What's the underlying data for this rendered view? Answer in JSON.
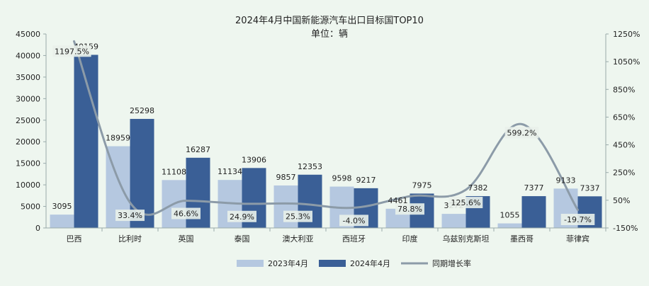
{
  "chart_data": {
    "type": "bar",
    "title": "2024年4月中国新能源汽车出口目标国TOP10",
    "subtitle": "单位：辆",
    "categories": [
      "巴西",
      "比利时",
      "英国",
      "泰国",
      "澳大利亚",
      "西班牙",
      "印度",
      "乌兹别克斯坦",
      "墨西哥",
      "菲律宾"
    ],
    "series": [
      {
        "name": "2023年4月",
        "type": "bar",
        "axis": "left",
        "color": "#b5c8e0",
        "values": [
          3095,
          18959,
          11108,
          11134,
          9857,
          9598,
          4461,
          3272,
          1055,
          9133
        ]
      },
      {
        "name": "2024年4月",
        "type": "bar",
        "axis": "left",
        "color": "#3a5f96",
        "values": [
          40159,
          25298,
          16287,
          13906,
          12353,
          9217,
          7975,
          7382,
          7377,
          7337
        ]
      },
      {
        "name": "同期增长率",
        "type": "line",
        "axis": "right",
        "color": "#8c9ba8",
        "values": [
          1197.5,
          33.4,
          46.6,
          24.9,
          25.3,
          -4.0,
          78.8,
          125.6,
          599.2,
          -19.7
        ],
        "labels": [
          "1197.5%",
          "33.4%",
          "46.6%",
          "24.9%",
          "25.3%",
          "-4.0%",
          "78.8%",
          "125.6%",
          "599.2%",
          "-19.7%"
        ]
      }
    ],
    "ylim": [
      0,
      45000
    ],
    "yticks": [
      0,
      5000,
      10000,
      15000,
      20000,
      25000,
      30000,
      35000,
      40000,
      45000
    ],
    "y2lim": [
      -150,
      1250
    ],
    "y2ticks": [
      "-150%",
      "50%",
      "250%",
      "450%",
      "650%",
      "850%",
      "1050%",
      "1250%"
    ],
    "y2tick_values": [
      -150,
      50,
      250,
      450,
      650,
      850,
      1050,
      1250
    ],
    "legend_position": "bottom",
    "grid": false
  }
}
